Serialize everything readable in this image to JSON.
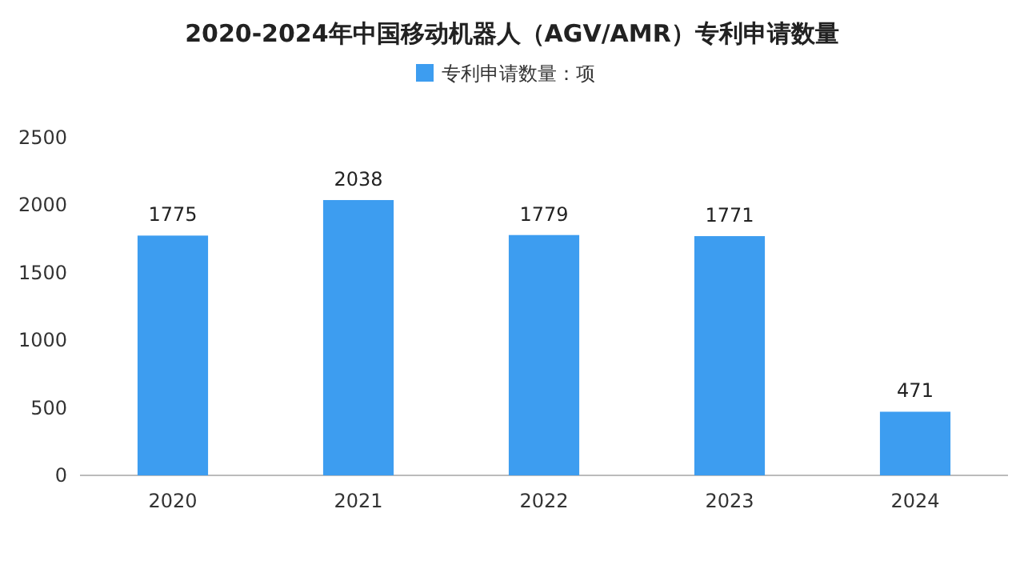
{
  "chart_data": {
    "type": "bar",
    "title": "2020-2024年中国移动机器人（AGV/AMR）专利申请数量",
    "categories": [
      "2020",
      "2021",
      "2022",
      "2023",
      "2024"
    ],
    "series": [
      {
        "name": "专利申请数量：项",
        "color": "#3d9df0",
        "values": [
          1775,
          2038,
          1779,
          1771,
          471
        ]
      }
    ],
    "ylim": [
      0,
      2500
    ],
    "yticks": [
      0,
      500,
      1000,
      1500,
      2000,
      2500
    ],
    "data_labels": true,
    "legend": "top",
    "grid": false
  }
}
